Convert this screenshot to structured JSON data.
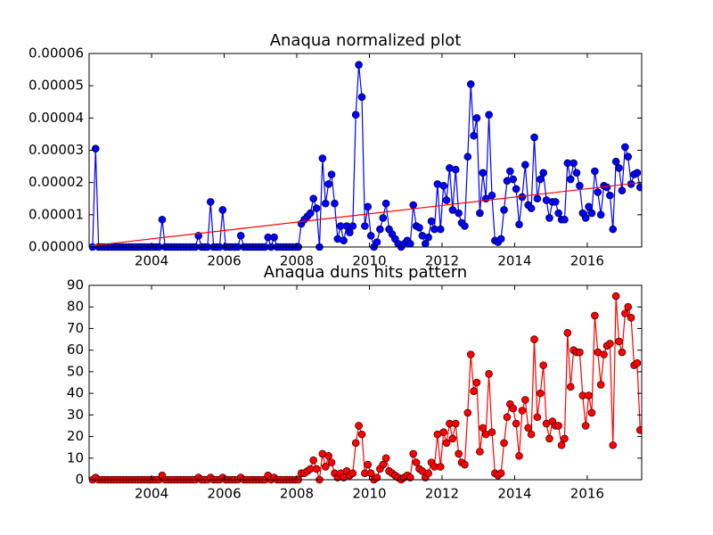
{
  "chart_data": [
    {
      "type": "line",
      "title": "Anaqua normalized plot",
      "x": [
        2002.375,
        2002.458,
        2002.542,
        2002.625,
        2002.708,
        2002.792,
        2002.875,
        2002.958,
        2003.042,
        2003.125,
        2003.208,
        2003.292,
        2003.375,
        2003.458,
        2003.542,
        2003.625,
        2003.708,
        2003.792,
        2003.875,
        2003.958,
        2004.042,
        2004.125,
        2004.208,
        2004.292,
        2004.375,
        2004.458,
        2004.542,
        2004.625,
        2004.708,
        2004.792,
        2004.875,
        2004.958,
        2005.042,
        2005.125,
        2005.208,
        2005.292,
        2005.375,
        2005.458,
        2005.542,
        2005.625,
        2005.708,
        2005.792,
        2005.875,
        2005.958,
        2006.042,
        2006.125,
        2006.208,
        2006.292,
        2006.375,
        2006.458,
        2006.542,
        2006.625,
        2006.708,
        2006.792,
        2006.875,
        2006.958,
        2007.042,
        2007.125,
        2007.208,
        2007.292,
        2007.375,
        2007.458,
        2007.542,
        2007.625,
        2007.708,
        2007.792,
        2007.875,
        2007.958,
        2008.042,
        2008.125,
        2008.208,
        2008.292,
        2008.375,
        2008.458,
        2008.542,
        2008.625,
        2008.708,
        2008.792,
        2008.875,
        2008.958,
        2009.042,
        2009.125,
        2009.208,
        2009.292,
        2009.375,
        2009.458,
        2009.542,
        2009.625,
        2009.708,
        2009.792,
        2009.875,
        2009.958,
        2010.042,
        2010.125,
        2010.208,
        2010.292,
        2010.375,
        2010.458,
        2010.542,
        2010.625,
        2010.708,
        2010.792,
        2010.875,
        2010.958,
        2011.042,
        2011.125,
        2011.208,
        2011.292,
        2011.375,
        2011.458,
        2011.542,
        2011.625,
        2011.708,
        2011.792,
        2011.875,
        2011.958,
        2012.042,
        2012.125,
        2012.208,
        2012.292,
        2012.375,
        2012.458,
        2012.542,
        2012.625,
        2012.708,
        2012.792,
        2012.875,
        2012.958,
        2013.042,
        2013.125,
        2013.208,
        2013.292,
        2013.375,
        2013.458,
        2013.542,
        2013.625,
        2013.708,
        2013.792,
        2013.875,
        2013.958,
        2014.042,
        2014.125,
        2014.208,
        2014.292,
        2014.375,
        2014.458,
        2014.542,
        2014.625,
        2014.708,
        2014.792,
        2014.875,
        2014.958,
        2015.042,
        2015.125,
        2015.208,
        2015.292,
        2015.375,
        2015.458,
        2015.542,
        2015.625,
        2015.708,
        2015.792,
        2015.875,
        2015.958,
        2016.042,
        2016.125,
        2016.208,
        2016.292,
        2016.375,
        2016.458,
        2016.542,
        2016.625,
        2016.708,
        2016.792,
        2016.875,
        2016.958,
        2017.042,
        2017.125,
        2017.208,
        2017.292,
        2017.375,
        2017.458
      ],
      "series": [
        {
          "color": "#0000ff",
          "marker": true,
          "values": [
            0,
            3.05e-05,
            0,
            0,
            0,
            0,
            0,
            0,
            0,
            0,
            0,
            0,
            0,
            0,
            0,
            0,
            0,
            0,
            0,
            0,
            0,
            0,
            0,
            8.5e-06,
            0,
            0,
            0,
            0,
            0,
            0,
            0,
            0,
            0,
            0,
            0,
            3.5e-06,
            0,
            0,
            0,
            1.4e-05,
            0,
            0,
            0,
            1.15e-05,
            0,
            0,
            0,
            0,
            0,
            3.5e-06,
            0,
            0,
            0,
            0,
            0,
            0,
            0,
            0,
            3e-06,
            0,
            3e-06,
            0,
            0,
            0,
            0,
            0,
            0,
            0,
            0,
            7.2e-06,
            8.5e-06,
            9.5e-06,
            1.05e-05,
            1.5e-05,
            1.2e-05,
            0,
            2.75e-05,
            1.35e-05,
            1.95e-05,
            2.25e-05,
            1.35e-05,
            2.5e-06,
            6.5e-06,
            2e-06,
            6.5e-06,
            4.5e-06,
            6.5e-06,
            4.1e-05,
            5.65e-05,
            4.65e-05,
            6.5e-06,
            1.25e-05,
            3.5e-06,
            0,
            1.5e-06,
            5.5e-06,
            9e-06,
            1.35e-05,
            5.5e-06,
            4e-06,
            2.5e-06,
            1e-06,
            0,
            1e-06,
            2e-06,
            1e-06,
            1.3e-05,
            6.5e-06,
            6e-06,
            3.5e-06,
            1e-06,
            3e-06,
            8e-06,
            5.5e-06,
            1.95e-05,
            5.5e-06,
            1.9e-05,
            1.45e-05,
            2.45e-05,
            1.15e-05,
            2.4e-05,
            1.05e-05,
            7.5e-06,
            6.5e-06,
            2.8e-05,
            5.05e-05,
            3.45e-05,
            4e-05,
            1.05e-05,
            2.3e-05,
            1.5e-05,
            4.1e-05,
            1.6e-05,
            2e-06,
            1.5e-06,
            2.5e-06,
            1.15e-05,
            2.05e-05,
            2.35e-05,
            2.1e-05,
            1.8e-05,
            7e-06,
            1.55e-05,
            2.55e-05,
            1.3e-05,
            1.2e-05,
            3.4e-05,
            1.5e-05,
            2.1e-05,
            2.3e-05,
            1.45e-05,
            9e-06,
            1.4e-05,
            1.4e-05,
            1.05e-05,
            8.5e-06,
            8.5e-06,
            2.6e-05,
            2.1e-05,
            2.6e-05,
            2.3e-05,
            1.9e-05,
            1.05e-05,
            9e-06,
            1.25e-05,
            1.05e-05,
            2.35e-05,
            1.7e-05,
            1e-05,
            1.9e-05,
            1.85e-05,
            1.6e-05,
            5.5e-06,
            2.65e-05,
            2.45e-05,
            1.75e-05,
            3.1e-05,
            2.8e-05,
            1.95e-05,
            2.25e-05,
            2.3e-05,
            1.85e-05
          ]
        },
        {
          "color": "#ff0000",
          "marker": false,
          "x": [
            2002.28,
            2017.5
          ],
          "values": [
            3e-07,
            2e-05
          ]
        }
      ],
      "xlim": [
        2002.28,
        2017.5
      ],
      "xticks": [
        2004,
        2006,
        2008,
        2010,
        2012,
        2014,
        2016
      ],
      "ylim": [
        0,
        6e-05
      ],
      "yticks": [
        {
          "value": 0,
          "label": "0.00000"
        },
        1e-05,
        2e-05,
        3e-05,
        4e-05,
        5e-05,
        6e-05
      ]
    },
    {
      "type": "line",
      "title": "Anaqua duns hits pattern",
      "x": [
        2002.375,
        2002.458,
        2002.542,
        2002.625,
        2002.708,
        2002.792,
        2002.875,
        2002.958,
        2003.042,
        2003.125,
        2003.208,
        2003.292,
        2003.375,
        2003.458,
        2003.542,
        2003.625,
        2003.708,
        2003.792,
        2003.875,
        2003.958,
        2004.042,
        2004.125,
        2004.208,
        2004.292,
        2004.375,
        2004.458,
        2004.542,
        2004.625,
        2004.708,
        2004.792,
        2004.875,
        2004.958,
        2005.042,
        2005.125,
        2005.208,
        2005.292,
        2005.375,
        2005.458,
        2005.542,
        2005.625,
        2005.708,
        2005.792,
        2005.875,
        2005.958,
        2006.042,
        2006.125,
        2006.208,
        2006.292,
        2006.375,
        2006.458,
        2006.542,
        2006.625,
        2006.708,
        2006.792,
        2006.875,
        2006.958,
        2007.042,
        2007.125,
        2007.208,
        2007.292,
        2007.375,
        2007.458,
        2007.542,
        2007.625,
        2007.708,
        2007.792,
        2007.875,
        2007.958,
        2008.042,
        2008.125,
        2008.208,
        2008.292,
        2008.375,
        2008.458,
        2008.542,
        2008.625,
        2008.708,
        2008.792,
        2008.875,
        2008.958,
        2009.042,
        2009.125,
        2009.208,
        2009.292,
        2009.375,
        2009.458,
        2009.542,
        2009.625,
        2009.708,
        2009.792,
        2009.875,
        2009.958,
        2010.042,
        2010.125,
        2010.208,
        2010.292,
        2010.375,
        2010.458,
        2010.542,
        2010.625,
        2010.708,
        2010.792,
        2010.875,
        2010.958,
        2011.042,
        2011.125,
        2011.208,
        2011.292,
        2011.375,
        2011.458,
        2011.542,
        2011.625,
        2011.708,
        2011.792,
        2011.875,
        2011.958,
        2012.042,
        2012.125,
        2012.208,
        2012.292,
        2012.375,
        2012.458,
        2012.542,
        2012.625,
        2012.708,
        2012.792,
        2012.875,
        2012.958,
        2013.042,
        2013.125,
        2013.208,
        2013.292,
        2013.375,
        2013.458,
        2013.542,
        2013.625,
        2013.708,
        2013.792,
        2013.875,
        2013.958,
        2014.042,
        2014.125,
        2014.208,
        2014.292,
        2014.375,
        2014.458,
        2014.542,
        2014.625,
        2014.708,
        2014.792,
        2014.875,
        2014.958,
        2015.042,
        2015.125,
        2015.208,
        2015.292,
        2015.375,
        2015.458,
        2015.542,
        2015.625,
        2015.708,
        2015.792,
        2015.875,
        2015.958,
        2016.042,
        2016.125,
        2016.208,
        2016.292,
        2016.375,
        2016.458,
        2016.542,
        2016.625,
        2016.708,
        2016.792,
        2016.875,
        2016.958,
        2017.042,
        2017.125,
        2017.208,
        2017.292,
        2017.375,
        2017.458
      ],
      "series": [
        {
          "color": "#ff0000",
          "marker": true,
          "values": [
            0,
            1,
            0,
            0,
            0,
            0,
            0,
            0,
            0,
            0,
            0,
            0,
            0,
            0,
            0,
            0,
            0,
            0,
            0,
            0,
            0,
            0,
            0,
            2,
            0,
            0,
            0,
            0,
            0,
            0,
            0,
            0,
            0,
            0,
            0,
            1,
            0,
            0,
            0,
            1,
            0,
            0,
            0,
            1,
            0,
            0,
            0,
            0,
            0,
            1,
            0,
            0,
            0,
            0,
            0,
            0,
            0,
            0,
            2,
            0,
            1,
            0,
            0,
            0,
            0,
            0,
            0,
            0,
            0,
            3,
            3,
            4,
            5,
            9,
            5,
            0,
            12,
            6,
            11,
            8,
            3,
            1,
            3,
            1,
            4,
            2,
            3,
            17,
            25,
            21,
            3,
            7,
            3,
            0,
            1,
            5,
            7,
            10,
            4,
            3,
            2,
            1,
            0,
            1,
            2,
            1,
            12,
            8,
            5,
            4,
            1,
            3,
            8,
            6,
            21,
            6,
            22,
            17,
            26,
            19,
            26,
            12,
            8,
            7,
            31,
            58,
            41,
            45,
            13,
            24,
            21,
            49,
            22,
            3,
            2,
            3,
            17,
            29,
            35,
            33,
            26,
            11,
            32,
            37,
            24,
            21,
            65,
            29,
            40,
            53,
            26,
            19,
            27,
            25,
            25,
            16,
            19,
            68,
            43,
            60,
            59,
            59,
            39,
            25,
            39,
            31,
            76,
            59,
            44,
            58,
            62,
            63,
            16,
            85,
            64,
            59,
            77,
            80,
            75,
            53,
            54,
            23
          ]
        }
      ],
      "xlim": [
        2002.28,
        2017.5
      ],
      "xticks": [
        2004,
        2006,
        2008,
        2010,
        2012,
        2014,
        2016
      ],
      "ylim": [
        0,
        90
      ],
      "yticks": [
        0,
        10,
        20,
        30,
        40,
        50,
        60,
        70,
        80,
        90
      ]
    }
  ]
}
